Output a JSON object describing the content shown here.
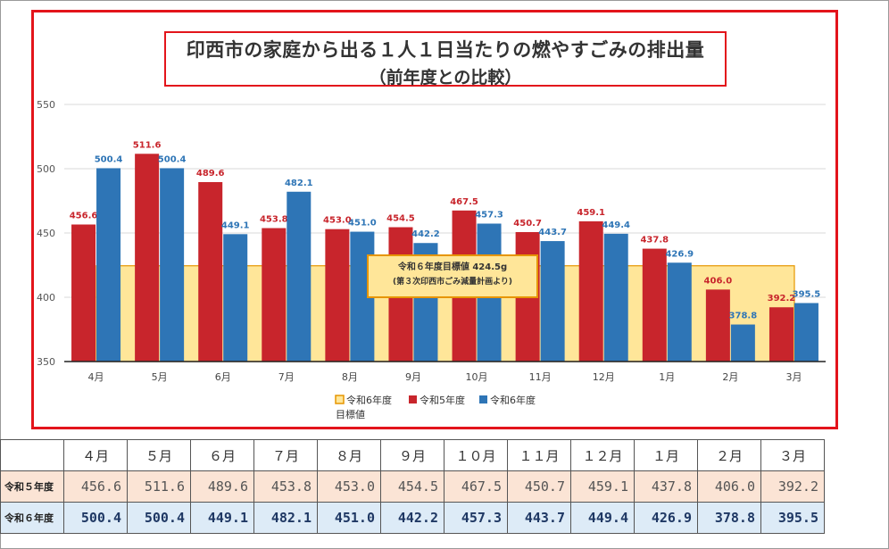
{
  "chart_data": {
    "type": "bar",
    "title": "印西市の家庭から出る１人１日当たりの燃やすごみの排出量",
    "subtitle": "（前年度との比較）",
    "categories": [
      "4月",
      "5月",
      "6月",
      "7月",
      "8月",
      "9月",
      "10月",
      "11月",
      "12月",
      "1月",
      "2月",
      "3月"
    ],
    "series": [
      {
        "name": "令和5年度",
        "color": "#c8252c",
        "values": [
          456.6,
          511.6,
          489.6,
          453.8,
          453.0,
          454.5,
          467.5,
          450.7,
          459.1,
          437.8,
          406.0,
          392.2
        ]
      },
      {
        "name": "令和6年度",
        "color": "#2e75b6",
        "values": [
          500.4,
          500.4,
          449.1,
          482.1,
          451.0,
          442.2,
          457.3,
          443.7,
          449.4,
          426.9,
          378.8,
          395.5
        ]
      }
    ],
    "target": {
      "name": "令和6年度目標値",
      "value": 424.5,
      "label1": "令和６年度目標値 424.5g",
      "label2": "(第３次印西市ごみ減量計画より)",
      "fill": "#ffe699",
      "stroke": "#e69500"
    },
    "ylim": [
      350,
      550
    ],
    "yticks": [
      350,
      400,
      450,
      500,
      550
    ],
    "grid": true,
    "legend": [
      {
        "label": "令和6年度\n目標値",
        "color": "#ffe699",
        "stroke": "#e69500"
      },
      {
        "label": "令和5年度",
        "color": "#c8252c"
      },
      {
        "label": "令和6年度",
        "color": "#2e75b6"
      }
    ],
    "legend_position": "bottom"
  },
  "table": {
    "headers": [
      "４月",
      "５月",
      "６月",
      "７月",
      "８月",
      "９月",
      "１０月",
      "１１月",
      "１２月",
      "１月",
      "２月",
      "３月"
    ],
    "rows": [
      {
        "label": "令和５年度",
        "values": [
          "456.6",
          "511.6",
          "489.6",
          "453.8",
          "453.0",
          "454.5",
          "467.5",
          "450.7",
          "459.1",
          "437.8",
          "406.0",
          "392.2"
        ]
      },
      {
        "label": "令和６年度",
        "values": [
          "500.4",
          "500.4",
          "449.1",
          "482.1",
          "451.0",
          "442.2",
          "457.3",
          "443.7",
          "449.4",
          "426.9",
          "378.8",
          "395.5"
        ]
      }
    ]
  }
}
